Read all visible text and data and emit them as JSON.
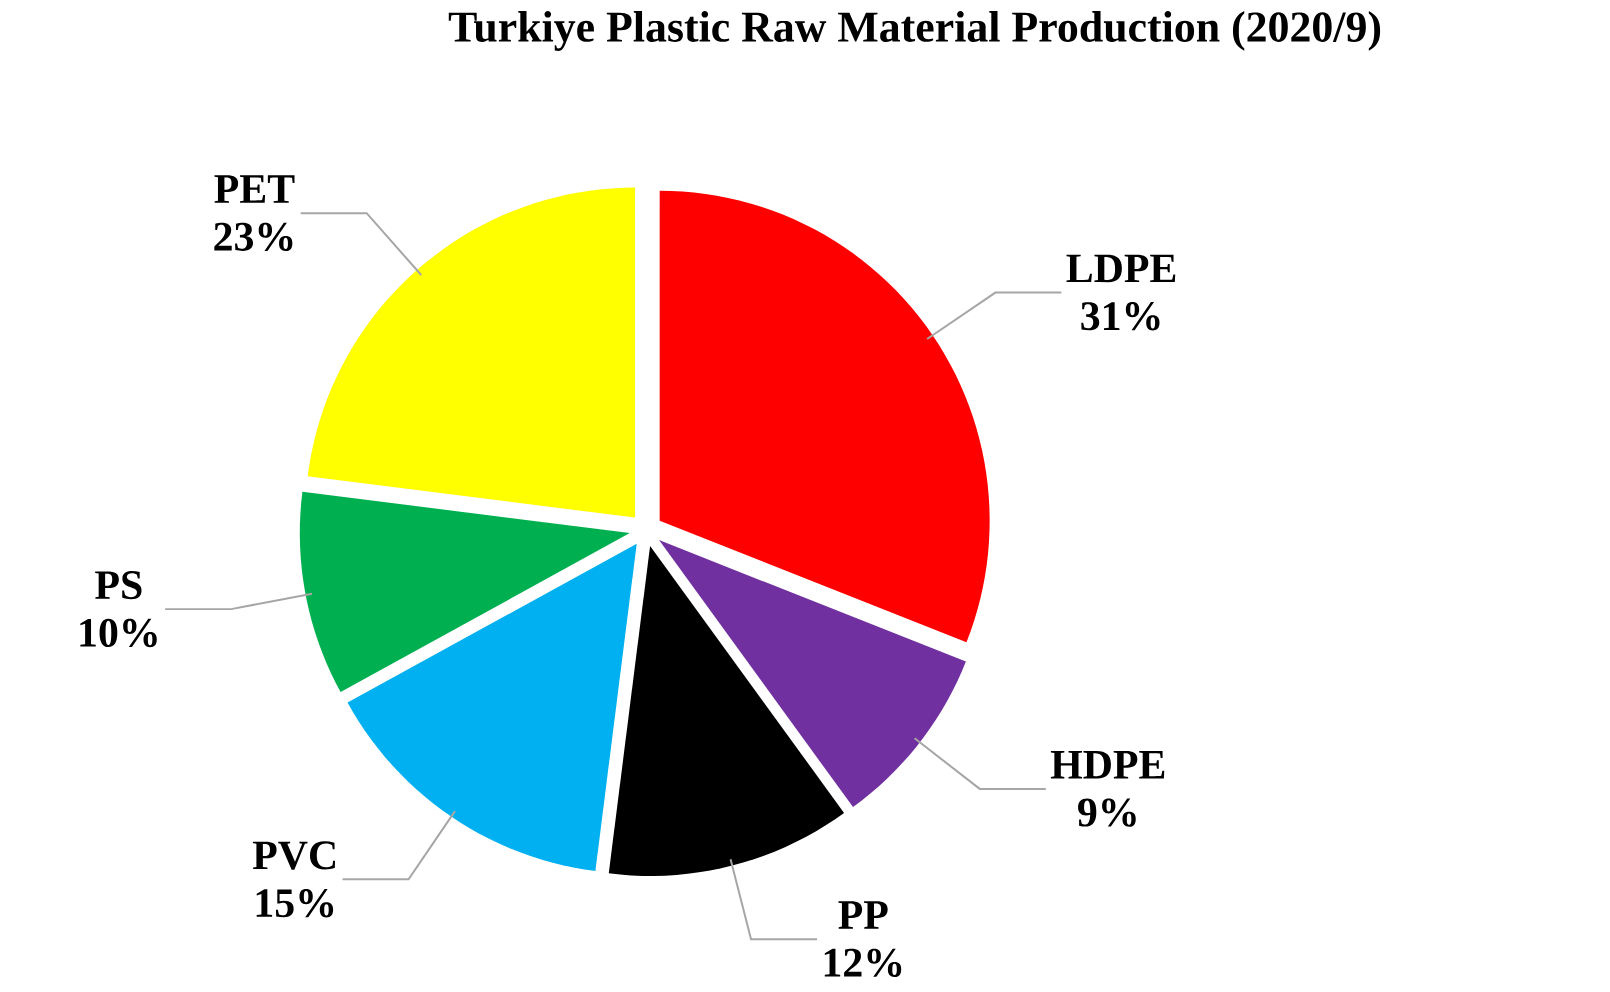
{
  "chart_data": {
    "type": "pie",
    "title": "Turkiye Plastic Raw Material Production (2020/9)",
    "categories": [
      "LDPE",
      "HDPE",
      "PP",
      "PVC",
      "PS",
      "PET"
    ],
    "values": [
      31,
      9,
      12,
      15,
      10,
      23
    ],
    "value_labels": [
      "31%",
      "9%",
      "12%",
      "15%",
      "10%",
      "23%"
    ],
    "colors": [
      "#ff0000",
      "#7030a0",
      "#000000",
      "#00b0f0",
      "#00b050",
      "#ffff00"
    ]
  }
}
